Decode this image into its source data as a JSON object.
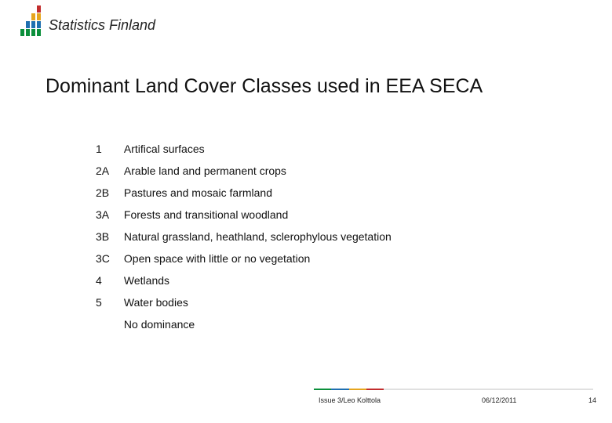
{
  "logo": {
    "text": "Statistics Finland",
    "bars": [
      {
        "segments": [
          {
            "h": 9,
            "c": "#0b8f3b"
          }
        ]
      },
      {
        "segments": [
          {
            "h": 9,
            "c": "#0b8f3b"
          },
          {
            "h": 9,
            "c": "#1f6fb0"
          }
        ]
      },
      {
        "segments": [
          {
            "h": 9,
            "c": "#0b8f3b"
          },
          {
            "h": 9,
            "c": "#1f6fb0"
          },
          {
            "h": 9,
            "c": "#e6a51e"
          }
        ]
      },
      {
        "segments": [
          {
            "h": 9,
            "c": "#0b8f3b"
          },
          {
            "h": 9,
            "c": "#1f6fb0"
          },
          {
            "h": 9,
            "c": "#e6a51e"
          },
          {
            "h": 9,
            "c": "#c22d2d"
          }
        ]
      }
    ]
  },
  "title_text": "Dominant Land Cover Classes used in EEA SECA",
  "table": {
    "rows": [
      {
        "code": "1",
        "label": "Artifical surfaces"
      },
      {
        "code": "2A",
        "label": "Arable land and permanent crops"
      },
      {
        "code": "2B",
        "label": "Pastures and mosaic farmland"
      },
      {
        "code": "3A",
        "label": "Forests and transitional woodland"
      },
      {
        "code": "3B",
        "label": "Natural grassland, heathland, sclerophylous vegetation"
      },
      {
        "code": "3C",
        "label": "Open space with little or no vegetation"
      },
      {
        "code": "4",
        "label": "Wetlands"
      },
      {
        "code": "5",
        "label": "Water bodies"
      },
      {
        "code": "",
        "label": "No dominance"
      }
    ]
  },
  "footer": {
    "source": "Issue 3/Leo Kolttola",
    "date": "06/12/2011",
    "page": "14",
    "bar_colors": [
      "#0b8f3b",
      "#1f6fb0",
      "#e6a51e",
      "#c22d2d",
      "#e0e0e0"
    ],
    "bar_weights": [
      1,
      1,
      1,
      1,
      12
    ]
  },
  "colors": {
    "background": "#ffffff",
    "text": "#111111"
  }
}
